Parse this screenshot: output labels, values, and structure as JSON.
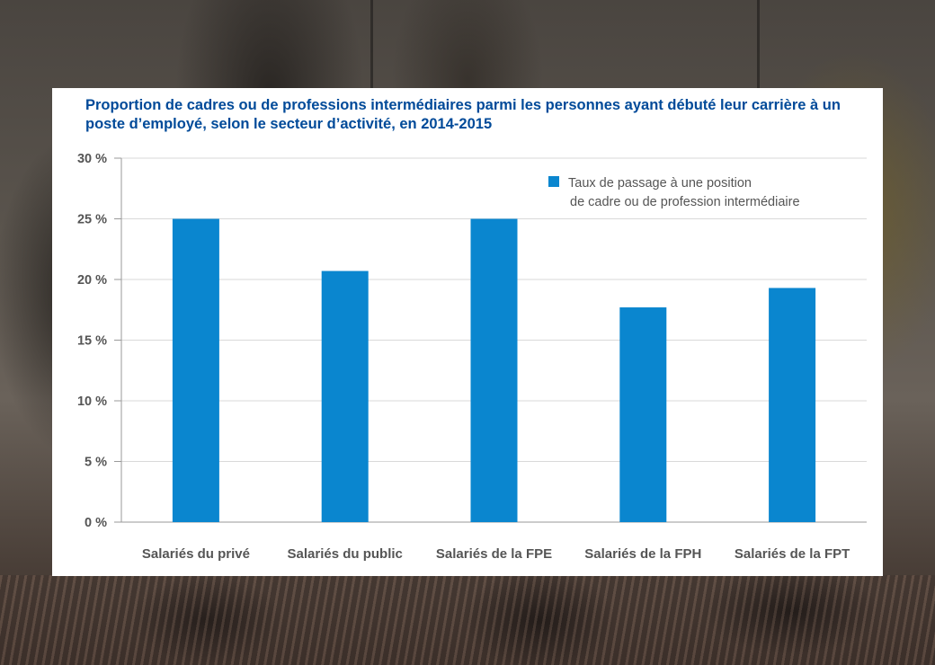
{
  "chart_data": {
    "type": "bar",
    "title": "Proportion de cadres ou de professions intermédiaires parmi les personnes ayant débuté leur carrière à un poste d’employé, selon le secteur d’activité, en 2014-2015",
    "categories": [
      "Salariés du privé",
      "Salariés du public",
      "Salariés de la FPE",
      "Salariés de la FPH",
      "Salariés de la FPT"
    ],
    "series": [
      {
        "name": "Taux de passage à une position de cadre ou de profession intermédiaire",
        "values": [
          25.0,
          20.7,
          25.0,
          17.7,
          19.3
        ],
        "color": "#0a86cf"
      }
    ],
    "ylim": [
      0,
      30
    ],
    "yticks": [
      "0 %",
      "5 %",
      "10 %",
      "15 %",
      "20 %",
      "25 %",
      "30 %"
    ],
    "ytick_values": [
      0,
      5,
      10,
      15,
      20,
      25,
      30
    ],
    "grid": true,
    "legend_position": "top-right",
    "legend_lines": [
      "Taux de passage à une position",
      "de cadre ou de profession intermédiaire"
    ]
  }
}
